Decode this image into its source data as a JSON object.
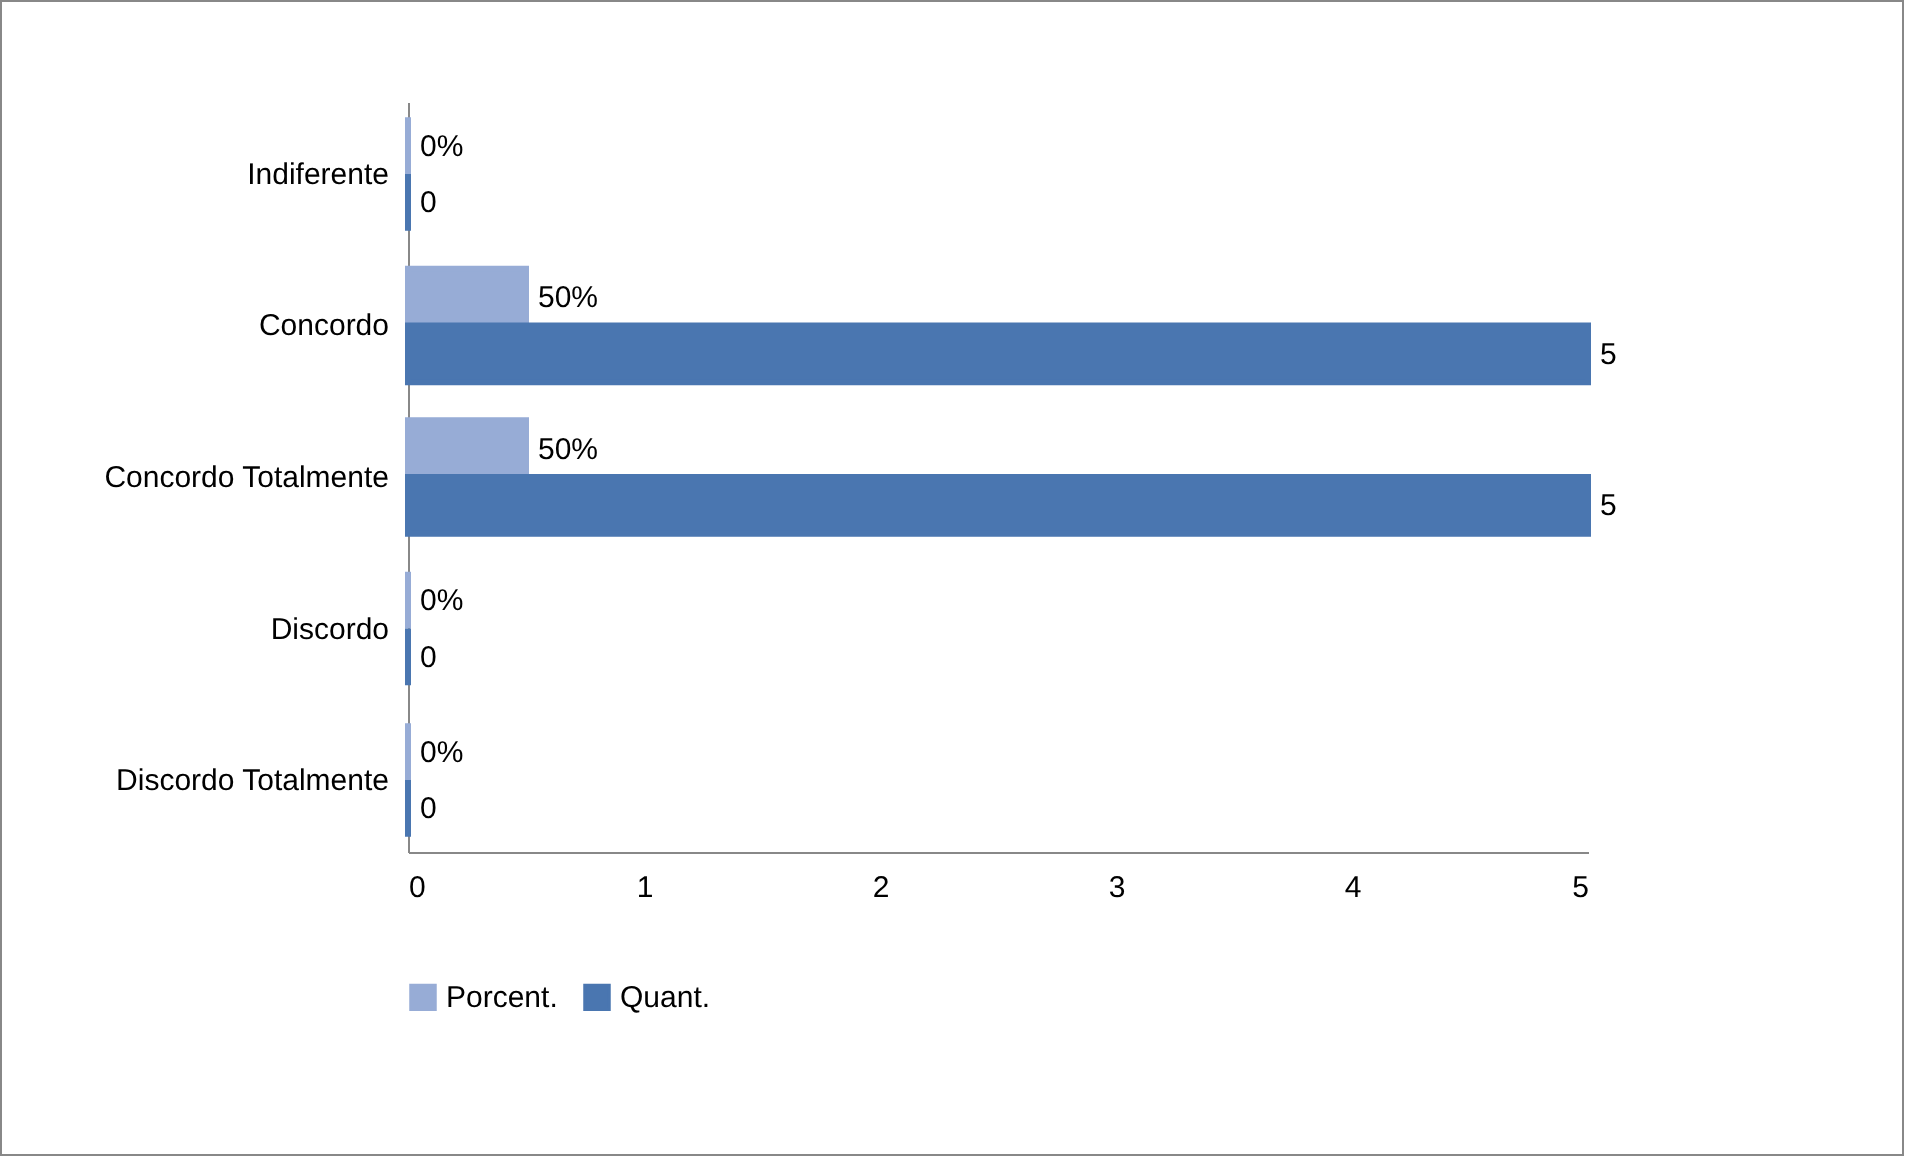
{
  "chart_data": {
    "type": "bar",
    "orientation": "horizontal",
    "categories": [
      "Indiferente",
      "Concordo",
      "Concordo Totalmente",
      "Discordo",
      "Discordo Totalmente"
    ],
    "series": [
      {
        "name": "Porcent.",
        "color": "#97acd6",
        "values": [
          0,
          0.5,
          0.5,
          0,
          0
        ],
        "value_labels": [
          "0%",
          "50%",
          "50%",
          "0%",
          "0%"
        ]
      },
      {
        "name": "Quant.",
        "color": "#4a76b0",
        "values": [
          0,
          5,
          5,
          0,
          0
        ],
        "value_labels": [
          "0",
          "5",
          "5",
          "0",
          "0"
        ]
      }
    ],
    "xlim": [
      0,
      5
    ],
    "xticks": [
      0,
      1,
      2,
      3,
      4,
      5
    ],
    "grid": false,
    "legend": "bottom"
  }
}
